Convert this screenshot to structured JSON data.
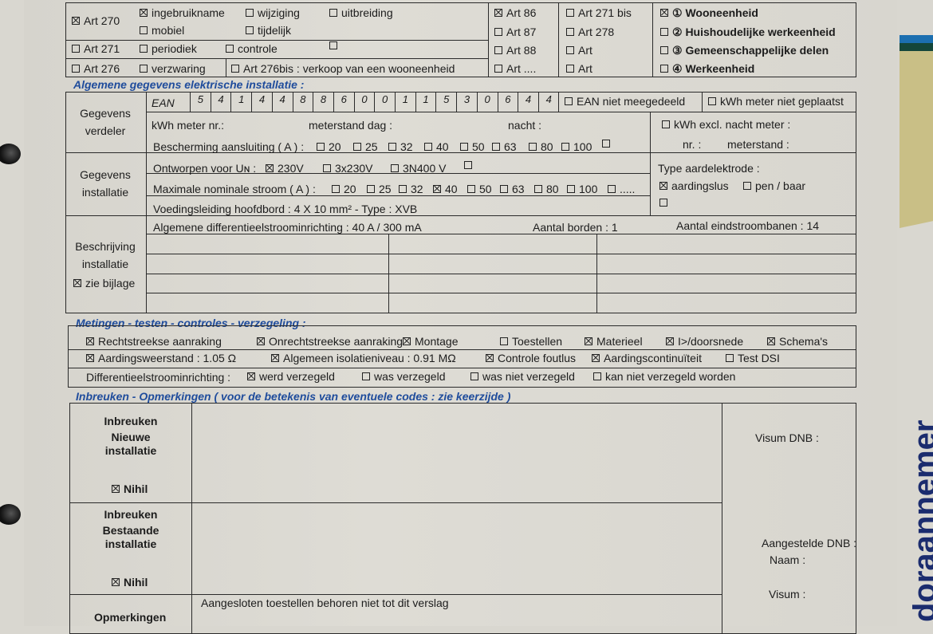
{
  "top": {
    "art270": {
      "label": "Art 270",
      "checked": true
    },
    "ingebruikname": {
      "label": "ingebruikname",
      "checked": true
    },
    "wijziging": {
      "label": "wijziging",
      "checked": false
    },
    "uitbreiding": {
      "label": "uitbreiding",
      "checked": false
    },
    "mobiel": {
      "label": "mobiel",
      "checked": false
    },
    "tijdelijk": {
      "label": "tijdelijk",
      "checked": false
    },
    "art271": {
      "label": "Art 271",
      "checked": false
    },
    "periodiek": {
      "label": "periodiek",
      "checked": false
    },
    "controle": {
      "label": "controle",
      "checked": false
    },
    "blank1": {
      "label": "",
      "checked": false
    },
    "art276": {
      "label": "Art 276",
      "checked": false
    },
    "verzwaring": {
      "label": "verzwaring",
      "checked": false
    },
    "art276bis": {
      "label": "Art 276bis : verkoop van een wooneenheid",
      "checked": false
    },
    "art86": {
      "label": "Art 86",
      "checked": true
    },
    "art87": {
      "label": "Art 87",
      "checked": false
    },
    "art88": {
      "label": "Art 88",
      "checked": false
    },
    "artdots": {
      "label": "Art ....",
      "checked": false
    },
    "art271bis": {
      "label": "Art 271 bis",
      "checked": false
    },
    "art278": {
      "label": "Art 278",
      "checked": false
    },
    "art_a": {
      "label": "Art",
      "checked": false
    },
    "art_b": {
      "label": "Art",
      "checked": false
    },
    "wooneenheid": {
      "label": "① Wooneenheid",
      "checked": true
    },
    "huishoudelijk": {
      "label": "② Huishoudelijke werkeenheid",
      "checked": false
    },
    "gemeenschappelijk": {
      "label": "③ Gemeenschappelijke delen",
      "checked": false
    },
    "werkeenheid": {
      "label": "④ Werkeenheid",
      "checked": false
    }
  },
  "algemeen": {
    "title": "Algemene gegevens elektrische installatie :",
    "verdeler_label": "Gegevens verdeler",
    "ean_label": "EAN",
    "ean_digits": [
      "5",
      "4",
      "1",
      "4",
      "4",
      "8",
      "8",
      "6",
      "0",
      "0",
      "1",
      "1",
      "5",
      "3",
      "0",
      "6",
      "4",
      "4"
    ],
    "ean_niet": {
      "label": "EAN niet meegedeeld",
      "checked": false
    },
    "kwh_niet": {
      "label": "kWh meter niet geplaatst",
      "checked": false
    },
    "kwh_meter_nr": "kWh meter nr.:",
    "meterstand_dag": "meterstand dag :",
    "nacht": "nacht :",
    "kwh_excl": {
      "label": "kWh excl. nacht meter :",
      "checked": false
    },
    "nr": "nr. :",
    "meterstand": "meterstand :",
    "bescherming_label": "Bescherming aansluiting ( A ) :",
    "bescherming": [
      {
        "label": "20",
        "checked": false
      },
      {
        "label": "25",
        "checked": false
      },
      {
        "label": "32",
        "checked": false
      },
      {
        "label": "40",
        "checked": false
      },
      {
        "label": "50",
        "checked": false
      },
      {
        "label": "63",
        "checked": false
      },
      {
        "label": "80",
        "checked": false
      },
      {
        "label": "100",
        "checked": false
      },
      {
        "label": "",
        "checked": false
      }
    ],
    "installatie_label": "Gegevens installatie",
    "ontworpen_label": "Ontworpen voor Uɴ :",
    "ontworpen": [
      {
        "label": "230V",
        "checked": true
      },
      {
        "label": "3x230V",
        "checked": false
      },
      {
        "label": "3N400 V",
        "checked": false
      },
      {
        "label": "",
        "checked": false
      }
    ],
    "stroom_label": "Maximale nominale stroom ( A ) :",
    "stroom": [
      {
        "label": "20",
        "checked": false
      },
      {
        "label": "25",
        "checked": false
      },
      {
        "label": "32",
        "checked": false
      },
      {
        "label": "40",
        "checked": true
      },
      {
        "label": "50",
        "checked": false
      },
      {
        "label": "63",
        "checked": false
      },
      {
        "label": "80",
        "checked": false
      },
      {
        "label": "100",
        "checked": false
      },
      {
        "label": ".....",
        "checked": false
      }
    ],
    "voedingsleiding": "Voedingsleiding hoofdbord :  4   X   10   mm²   -  Type : XVB",
    "aardelektrode_label": "Type aardelektrode :",
    "aardingslus": {
      "label": "aardingslus",
      "checked": true
    },
    "pen_baar": {
      "label": "pen /  baar",
      "checked": false
    },
    "aard_blank": {
      "label": "",
      "checked": false
    },
    "beschrijving_label": "Beschrijving installatie",
    "zie_bijlage": {
      "label": "zie bijlage",
      "checked": true
    },
    "differentieel": "Algemene differentieelstroominrichting   : 40 A  / 300 mA",
    "aantal_borden": "Aantal borden : 1",
    "aantal_eindstroombanen": "Aantal eindstroombanen :  14"
  },
  "metingen": {
    "title": "Metingen - testen - controles - verzegeling :",
    "row1": [
      {
        "label": "Rechtstreekse aanraking",
        "checked": true
      },
      {
        "label": "Onrechtstreekse aanraking",
        "checked": true
      },
      {
        "label": "Montage",
        "checked": true
      },
      {
        "label": "Toestellen",
        "checked": false
      },
      {
        "label": "Materieel",
        "checked": true
      },
      {
        "label": "I>/doorsnede",
        "checked": true
      },
      {
        "label": "Schema's",
        "checked": true
      }
    ],
    "row2": [
      {
        "label": "Aardingsweerstand :  1.05 Ω",
        "checked": true
      },
      {
        "label": "Algemeen isolatieniveau : 0.91 MΩ",
        "checked": true
      },
      {
        "label": "Controle foutlus",
        "checked": true
      },
      {
        "label": "Aardingscontinuïteit",
        "checked": true
      },
      {
        "label": "Test DSI",
        "checked": false
      }
    ],
    "row3_label": "Differentieelstroominrichting :",
    "row3": [
      {
        "label": "werd verzegeld",
        "checked": true
      },
      {
        "label": "was verzegeld",
        "checked": false
      },
      {
        "label": "was niet verzegeld",
        "checked": false
      },
      {
        "label": "kan niet verzegeld worden",
        "checked": false
      }
    ]
  },
  "inbreuken": {
    "title": "Inbreuken - Opmerkingen ( voor de betekenis van eventuele codes : zie keerzijde )",
    "nieuw_label": [
      "Inbreuken",
      "Nieuwe",
      "installatie"
    ],
    "nieuw_nihil": {
      "label": "Nihil",
      "checked": true
    },
    "bestaand_label": [
      "Inbreuken",
      "Bestaande",
      "installatie"
    ],
    "bestaand_nihil": {
      "label": "Nihil",
      "checked": true
    },
    "opmerkingen_label": "Opmerkingen",
    "opmerkingen_text": "Aangesloten toestellen behoren niet tot dit verslag",
    "visum_dnb": "Visum DNB :",
    "aangestelde_dnb": "Aangestelde DNB :",
    "naam": "Naam :",
    "visum": "Visum :"
  },
  "side": {
    "rotated_text": "doraannemer",
    "colors": {
      "blue": "#1c6fb0",
      "green": "#14463a",
      "tan": "#c9bf86"
    }
  }
}
